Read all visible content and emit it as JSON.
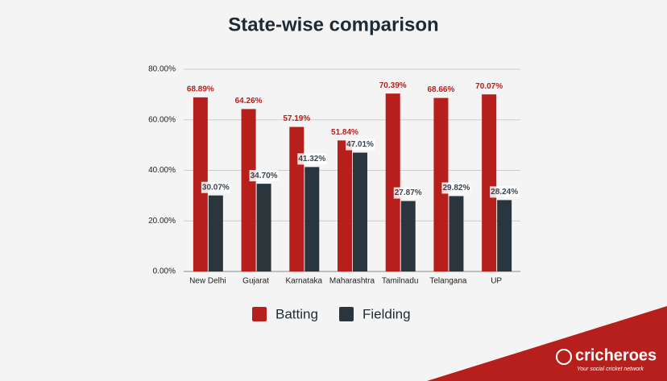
{
  "chart_data": {
    "type": "bar",
    "title": "State-wise comparison",
    "categories": [
      "New Delhi",
      "Gujarat",
      "Karnataka",
      "Maharashtra",
      "Tamilnadu",
      "Telangana",
      "UP"
    ],
    "series": [
      {
        "name": "Batting",
        "color": "#b71f1c",
        "values": [
          68.89,
          64.26,
          57.19,
          51.84,
          70.39,
          68.66,
          70.07
        ],
        "value_labels": [
          "68.89%",
          "64.26%",
          "57.19%",
          "51.84%",
          "70.39%",
          "68.66%",
          "70.07%"
        ]
      },
      {
        "name": "Fielding",
        "color": "#2a353e",
        "values": [
          30.07,
          34.7,
          41.32,
          47.01,
          27.87,
          29.82,
          28.24
        ],
        "value_labels": [
          "30.07%",
          "34.70%",
          "41.32%",
          "47.01%",
          "27.87%",
          "29.82%",
          "28.24%"
        ]
      }
    ],
    "ylim": [
      0,
      80
    ],
    "yticks": [
      {
        "value": 0,
        "label": "0.00%"
      },
      {
        "value": 20,
        "label": "20.00%"
      },
      {
        "value": 40,
        "label": "40.00%"
      },
      {
        "value": 60,
        "label": "60.00%"
      },
      {
        "value": 80,
        "label": "80.00%"
      }
    ],
    "grid": true,
    "legend": "bottom"
  },
  "branding": {
    "name": "cricheroes",
    "tagline": "Your social cricket network"
  }
}
